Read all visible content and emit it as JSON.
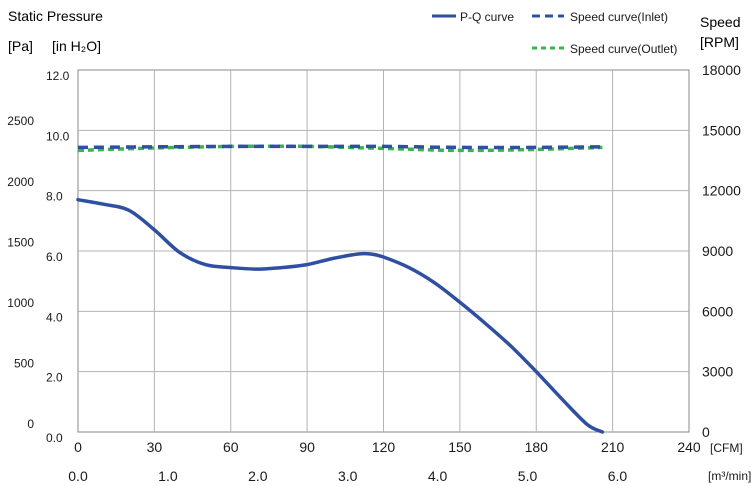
{
  "chart_data": {
    "type": "line",
    "title": "Static Pressure",
    "left_axis_units": [
      "[Pa]",
      "[in H₂O]"
    ],
    "right_axis_title": "Speed",
    "right_axis_unit": "[RPM]",
    "x_primary": {
      "unit": "[CFM]",
      "range": [
        0,
        240
      ],
      "ticks": [
        "0",
        "30",
        "60",
        "90",
        "120",
        "150",
        "180",
        "210",
        "240"
      ]
    },
    "x_secondary": {
      "unit": "[m³/min]",
      "ticks": [
        "0.0",
        "1.0",
        "2.0",
        "3.0",
        "4.0",
        "5.0",
        "6.0"
      ]
    },
    "y_inh2o": {
      "range": [
        0,
        12
      ],
      "ticks": [
        "0.0",
        "2.0",
        "4.0",
        "6.0",
        "8.0",
        "10.0",
        "12.0"
      ]
    },
    "y_pa": {
      "ticks": [
        "0",
        "500",
        "1000",
        "1500",
        "2000",
        "2500"
      ]
    },
    "y_rpm": {
      "range": [
        0,
        18000
      ],
      "ticks": [
        "0",
        "3000",
        "6000",
        "9000",
        "12000",
        "15000",
        "18000"
      ]
    },
    "grid": true,
    "legend_position": "top-right",
    "legend": [
      {
        "label": "P-Q curve",
        "color": "#2f4fa1",
        "style": "solid"
      },
      {
        "label": "Speed curve(Inlet)",
        "color": "#2f4fa1",
        "style": "dashed"
      },
      {
        "label": "Speed curve(Outlet)",
        "color": "#39b54a",
        "style": "dashed"
      }
    ],
    "series": [
      {
        "name": "P-Q curve",
        "axis": "inH2O",
        "color": "#2f4fa1",
        "style": "solid",
        "x": [
          0,
          10,
          20,
          30,
          40,
          50,
          60,
          70,
          80,
          90,
          100,
          110,
          115,
          120,
          130,
          140,
          150,
          160,
          170,
          180,
          190,
          200,
          206
        ],
        "y": [
          7.7,
          7.55,
          7.35,
          6.7,
          5.95,
          5.55,
          5.45,
          5.4,
          5.45,
          5.55,
          5.75,
          5.9,
          5.9,
          5.8,
          5.45,
          4.95,
          4.3,
          3.6,
          2.85,
          2.0,
          1.1,
          0.25,
          0.0
        ]
      },
      {
        "name": "Speed curve(Inlet)",
        "axis": "rpm",
        "color": "#2f4fa1",
        "style": "dashed",
        "x": [
          0,
          30,
          60,
          90,
          120,
          150,
          180,
          206
        ],
        "y": [
          14150,
          14180,
          14200,
          14200,
          14200,
          14150,
          14150,
          14180
        ]
      },
      {
        "name": "Speed curve(Outlet)",
        "axis": "rpm",
        "color": "#39b54a",
        "style": "dashed",
        "x": [
          0,
          30,
          60,
          90,
          120,
          150,
          180,
          206
        ],
        "y": [
          14000,
          14120,
          14200,
          14200,
          14100,
          14000,
          14050,
          14150
        ]
      }
    ]
  }
}
